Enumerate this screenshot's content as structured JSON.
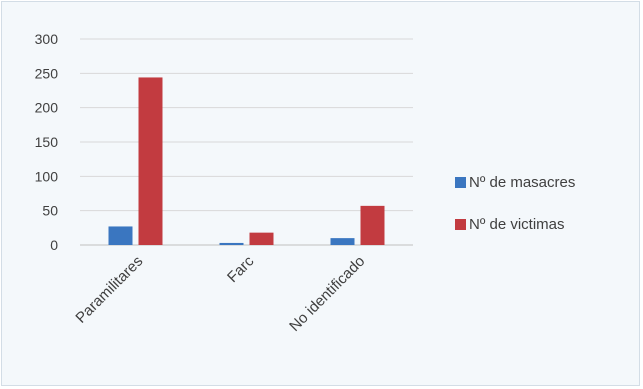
{
  "chart_data": {
    "type": "bar",
    "categories": [
      "Paramilitares",
      "Farc",
      "No identificado"
    ],
    "series": [
      {
        "name": "Nº de masacres",
        "values": [
          27,
          3,
          10
        ],
        "color": "#3a76c0"
      },
      {
        "name": "Nº de victimas",
        "values": [
          244,
          18,
          57
        ],
        "color": "#c23b40"
      }
    ],
    "yticks": [
      0,
      50,
      100,
      150,
      200,
      250,
      300
    ],
    "ylim": [
      0,
      300
    ],
    "grid": true,
    "legend_position": "right"
  }
}
